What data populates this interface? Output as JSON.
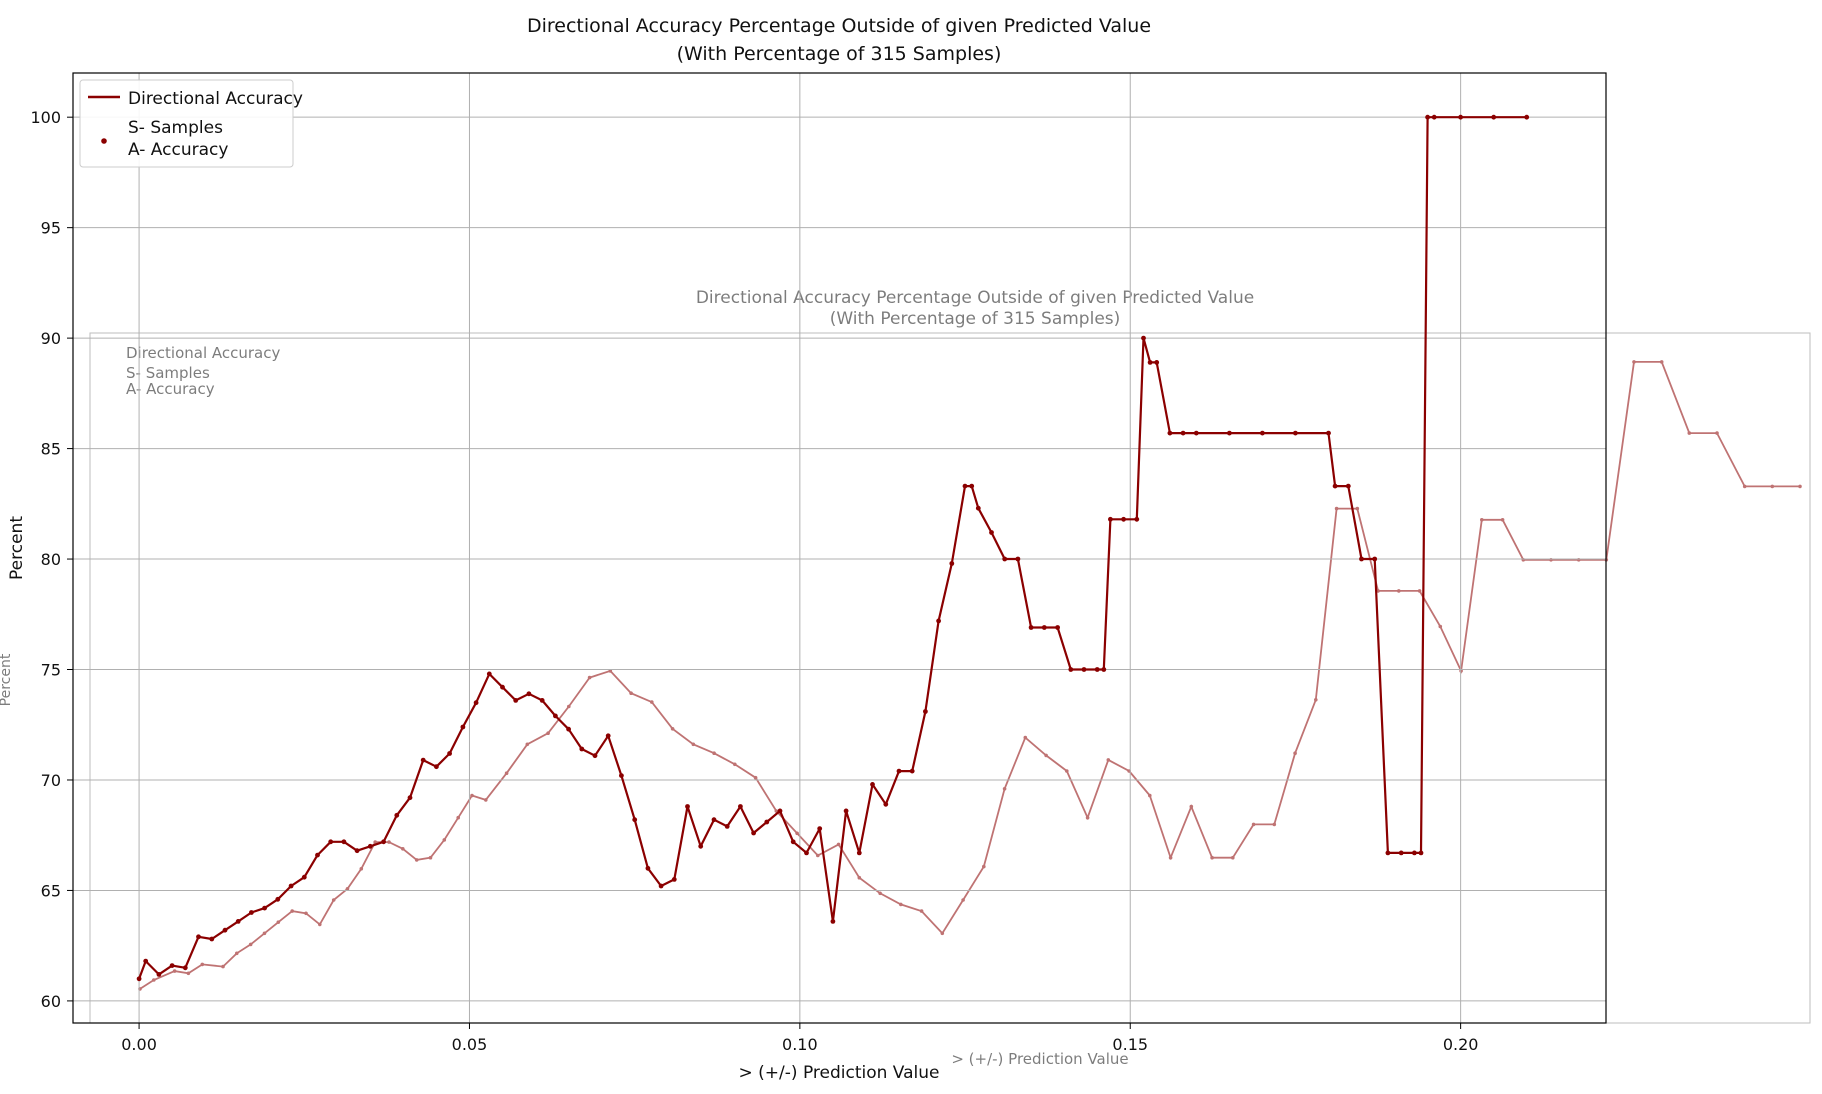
{
  "chart_data": {
    "type": "line",
    "title": "Directional Accuracy Percentage Outside of given Predicted Value",
    "subtitle": "(With Percentage of 315 Samples)",
    "xlabel": "> (+/-) Prediction Value",
    "ylabel": "Percent",
    "xlim": [
      -0.01,
      0.222
    ],
    "ylim": [
      59.0,
      102.0
    ],
    "x_ticks": [
      0.0,
      0.05,
      0.1,
      0.15,
      0.2
    ],
    "x_tick_labels": [
      "0.00",
      "0.05",
      "0.10",
      "0.15",
      "0.20"
    ],
    "y_ticks": [
      60,
      65,
      70,
      75,
      80,
      85,
      90,
      95,
      100
    ],
    "y_tick_labels": [
      "60",
      "65",
      "70",
      "75",
      "80",
      "85",
      "90",
      "95",
      "100"
    ],
    "grid": true,
    "legend": {
      "position": "top-left",
      "entries": [
        {
          "label": "Directional Accuracy",
          "marker": "line"
        },
        {
          "label": "S- Samples",
          "marker": "point"
        },
        {
          "label": "A- Accuracy",
          "marker": "none"
        }
      ]
    },
    "colors": {
      "line": "#8b0000",
      "grid": "#b0b0b0",
      "axis": "#000000"
    },
    "series": [
      {
        "name": "Directional Accuracy",
        "x": [
          0.0,
          0.001,
          0.003,
          0.005,
          0.007,
          0.009,
          0.011,
          0.013,
          0.015,
          0.017,
          0.019,
          0.021,
          0.023,
          0.025,
          0.027,
          0.029,
          0.031,
          0.033,
          0.035,
          0.037,
          0.039,
          0.041,
          0.043,
          0.045,
          0.047,
          0.049,
          0.051,
          0.053,
          0.055,
          0.057,
          0.059,
          0.061,
          0.063,
          0.065,
          0.067,
          0.069,
          0.071,
          0.073,
          0.075,
          0.077,
          0.079,
          0.081,
          0.083,
          0.085,
          0.087,
          0.089,
          0.091,
          0.093,
          0.095,
          0.097,
          0.099,
          0.101,
          0.103,
          0.105,
          0.107,
          0.109,
          0.111,
          0.113,
          0.115,
          0.117,
          0.119,
          0.121,
          0.123,
          0.125,
          0.126,
          0.127,
          0.129,
          0.131,
          0.133,
          0.135,
          0.137,
          0.139,
          0.141,
          0.143,
          0.145,
          0.146,
          0.147,
          0.149,
          0.151,
          0.152,
          0.153,
          0.154,
          0.156,
          0.158,
          0.16,
          0.165,
          0.17,
          0.175,
          0.18,
          0.181,
          0.183,
          0.185,
          0.187,
          0.189,
          0.191,
          0.193,
          0.194,
          0.195,
          0.196,
          0.2,
          0.205,
          0.21
        ],
        "y": [
          61.0,
          61.8,
          61.2,
          61.6,
          61.5,
          62.9,
          62.8,
          63.2,
          63.6,
          64.0,
          64.2,
          64.6,
          65.2,
          65.6,
          66.6,
          67.2,
          67.2,
          66.8,
          67.0,
          67.2,
          68.4,
          69.2,
          70.9,
          70.6,
          71.2,
          72.4,
          73.5,
          74.8,
          74.2,
          73.6,
          73.9,
          73.6,
          72.9,
          72.3,
          71.4,
          71.1,
          72.0,
          70.2,
          68.2,
          66.0,
          65.2,
          65.5,
          68.8,
          67.0,
          68.2,
          67.9,
          68.8,
          67.6,
          68.1,
          68.6,
          67.2,
          66.7,
          67.8,
          63.6,
          68.6,
          66.7,
          69.8,
          68.9,
          70.4,
          70.4,
          73.1,
          77.2,
          79.8,
          83.3,
          83.3,
          82.3,
          81.2,
          80.0,
          80.0,
          76.9,
          76.9,
          76.9,
          75.0,
          75.0,
          75.0,
          75.0,
          81.8,
          81.8,
          81.8,
          90.0,
          88.9,
          88.9,
          85.7,
          85.7,
          85.7,
          85.7,
          85.7,
          85.7,
          85.7,
          83.3,
          83.3,
          80.0,
          80.0,
          66.7,
          66.7,
          66.7,
          66.7,
          100.0,
          100.0,
          100.0,
          100.0,
          100.0
        ]
      }
    ],
    "overlay_ghost": {
      "title": "Directional Accuracy Percentage Outside of given Predicted Value",
      "subtitle": "(With Percentage of 315 Samples)",
      "xlabel": "> (+/-) Prediction Value",
      "ylabel": "Percent",
      "legend": [
        "Directional Accuracy",
        "S- Samples",
        "A- Accuracy"
      ],
      "x": [
        0.0,
        0.002,
        0.005,
        0.007,
        0.009,
        0.012,
        0.014,
        0.016,
        0.018,
        0.02,
        0.022,
        0.024,
        0.026,
        0.028,
        0.03,
        0.032,
        0.034,
        0.036,
        0.038,
        0.04,
        0.042,
        0.044,
        0.046,
        0.048,
        0.05,
        0.053,
        0.056,
        0.059,
        0.062,
        0.065,
        0.068,
        0.071,
        0.074,
        0.077,
        0.08,
        0.083,
        0.086,
        0.089,
        0.092,
        0.095,
        0.098,
        0.101,
        0.104,
        0.107,
        0.11,
        0.113,
        0.116,
        0.119,
        0.122,
        0.125,
        0.128,
        0.131,
        0.134,
        0.137,
        0.14,
        0.143,
        0.146,
        0.149,
        0.152,
        0.155,
        0.158,
        0.161,
        0.164,
        0.167,
        0.17,
        0.173,
        0.176,
        0.179,
        0.182,
        0.185,
        0.188,
        0.191,
        0.194,
        0.197,
        0.2,
        0.204,
        0.208,
        0.212,
        0.216,
        0.22,
        0.224,
        0.228,
        0.232,
        0.236,
        0.24
      ],
      "y": [
        60.5,
        60.9,
        61.3,
        61.2,
        61.6,
        61.5,
        62.1,
        62.5,
        63.0,
        63.5,
        64.0,
        63.9,
        63.4,
        64.5,
        65.0,
        65.9,
        67.1,
        67.1,
        66.8,
        66.3,
        66.4,
        67.2,
        68.2,
        69.2,
        69.0,
        70.2,
        71.5,
        72.0,
        73.2,
        74.5,
        74.8,
        73.8,
        73.4,
        72.2,
        71.5,
        71.1,
        70.6,
        70.0,
        68.5,
        67.5,
        66.5,
        67.0,
        65.5,
        64.8,
        64.3,
        64.0,
        63.0,
        64.5,
        66.0,
        69.5,
        71.8,
        71.0,
        70.3,
        68.2,
        70.8,
        70.3,
        69.2,
        66.4,
        68.7,
        66.4,
        66.4,
        67.9,
        67.9,
        71.1,
        73.5,
        82.1,
        82.1,
        78.4,
        78.4,
        78.4,
        76.8,
        74.8,
        81.6,
        81.6,
        79.8,
        79.8,
        79.8,
        79.8,
        88.7,
        88.7,
        85.5,
        85.5,
        83.1,
        83.1,
        83.1
      ]
    }
  }
}
